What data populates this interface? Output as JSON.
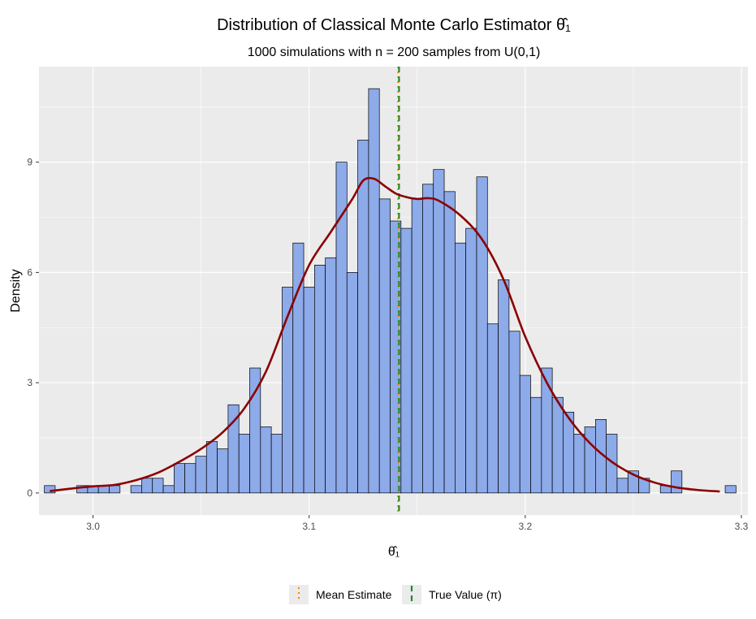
{
  "chart_data": {
    "type": "bar",
    "title": "Distribution of Classical Monte Carlo Estimator θ̂₁",
    "subtitle": "1000 simulations with n = 200 samples from U(0,1)",
    "xlabel": "θ̂₁",
    "ylabel": "Density",
    "xlim": [
      2.975,
      3.303
    ],
    "ylim": [
      -0.6,
      11.6
    ],
    "x_ticks": [
      3.0,
      3.1,
      3.2,
      3.3
    ],
    "x_tick_labels": [
      "3.0",
      "3.1",
      "3.2",
      "3.3"
    ],
    "y_ticks": [
      0,
      3,
      6,
      9
    ],
    "y_tick_labels": [
      "0",
      "3",
      "6",
      "9"
    ],
    "grid": true,
    "bin_width": 0.005,
    "bins": [
      {
        "x": 2.98,
        "density": 0.2
      },
      {
        "x": 2.985,
        "density": 0.0
      },
      {
        "x": 2.99,
        "density": 0.0
      },
      {
        "x": 2.995,
        "density": 0.2
      },
      {
        "x": 3.0,
        "density": 0.2
      },
      {
        "x": 3.005,
        "density": 0.2
      },
      {
        "x": 3.01,
        "density": 0.2
      },
      {
        "x": 3.015,
        "density": 0.0
      },
      {
        "x": 3.02,
        "density": 0.2
      },
      {
        "x": 3.025,
        "density": 0.4
      },
      {
        "x": 3.03,
        "density": 0.4
      },
      {
        "x": 3.035,
        "density": 0.2
      },
      {
        "x": 3.04,
        "density": 0.8
      },
      {
        "x": 3.045,
        "density": 0.8
      },
      {
        "x": 3.05,
        "density": 1.0
      },
      {
        "x": 3.055,
        "density": 1.4
      },
      {
        "x": 3.06,
        "density": 1.2
      },
      {
        "x": 3.065,
        "density": 2.4
      },
      {
        "x": 3.07,
        "density": 1.6
      },
      {
        "x": 3.075,
        "density": 3.4
      },
      {
        "x": 3.08,
        "density": 1.8
      },
      {
        "x": 3.085,
        "density": 1.6
      },
      {
        "x": 3.09,
        "density": 5.6
      },
      {
        "x": 3.095,
        "density": 6.8
      },
      {
        "x": 3.1,
        "density": 5.6
      },
      {
        "x": 3.105,
        "density": 6.2
      },
      {
        "x": 3.11,
        "density": 6.4
      },
      {
        "x": 3.115,
        "density": 9.0
      },
      {
        "x": 3.12,
        "density": 6.0
      },
      {
        "x": 3.125,
        "density": 9.6
      },
      {
        "x": 3.13,
        "density": 11.0
      },
      {
        "x": 3.135,
        "density": 8.0
      },
      {
        "x": 3.14,
        "density": 7.4
      },
      {
        "x": 3.145,
        "density": 7.2
      },
      {
        "x": 3.15,
        "density": 8.0
      },
      {
        "x": 3.155,
        "density": 8.4
      },
      {
        "x": 3.16,
        "density": 8.8
      },
      {
        "x": 3.165,
        "density": 8.2
      },
      {
        "x": 3.17,
        "density": 6.8
      },
      {
        "x": 3.175,
        "density": 7.2
      },
      {
        "x": 3.18,
        "density": 8.6
      },
      {
        "x": 3.185,
        "density": 4.6
      },
      {
        "x": 3.19,
        "density": 5.8
      },
      {
        "x": 3.195,
        "density": 4.4
      },
      {
        "x": 3.2,
        "density": 3.2
      },
      {
        "x": 3.205,
        "density": 2.6
      },
      {
        "x": 3.21,
        "density": 3.4
      },
      {
        "x": 3.215,
        "density": 2.6
      },
      {
        "x": 3.22,
        "density": 2.2
      },
      {
        "x": 3.225,
        "density": 1.6
      },
      {
        "x": 3.23,
        "density": 1.8
      },
      {
        "x": 3.235,
        "density": 2.0
      },
      {
        "x": 3.24,
        "density": 1.6
      },
      {
        "x": 3.245,
        "density": 0.4
      },
      {
        "x": 3.25,
        "density": 0.6
      },
      {
        "x": 3.255,
        "density": 0.4
      },
      {
        "x": 3.26,
        "density": 0.0
      },
      {
        "x": 3.265,
        "density": 0.2
      },
      {
        "x": 3.27,
        "density": 0.6
      },
      {
        "x": 3.275,
        "density": 0.0
      },
      {
        "x": 3.28,
        "density": 0.0
      },
      {
        "x": 3.285,
        "density": 0.0
      },
      {
        "x": 3.29,
        "density": 0.0
      },
      {
        "x": 3.295,
        "density": 0.2
      }
    ],
    "density_curve": {
      "x": [
        2.98,
        2.99,
        3.0,
        3.01,
        3.02,
        3.03,
        3.04,
        3.05,
        3.06,
        3.07,
        3.08,
        3.09,
        3.1,
        3.11,
        3.12,
        3.125,
        3.13,
        3.135,
        3.14,
        3.145,
        3.15,
        3.155,
        3.16,
        3.17,
        3.18,
        3.19,
        3.2,
        3.21,
        3.22,
        3.23,
        3.24,
        3.25,
        3.26,
        3.27,
        3.28,
        3.29
      ],
      "y": [
        0.05,
        0.12,
        0.18,
        0.22,
        0.35,
        0.55,
        0.85,
        1.2,
        1.65,
        2.3,
        3.3,
        4.8,
        6.2,
        7.1,
        8.0,
        8.5,
        8.55,
        8.35,
        8.15,
        8.05,
        8.0,
        8.02,
        7.95,
        7.55,
        6.9,
        5.8,
        4.25,
        3.0,
        2.05,
        1.35,
        0.85,
        0.5,
        0.28,
        0.15,
        0.08,
        0.04
      ]
    },
    "reference_lines": [
      {
        "name": "Mean Estimate",
        "x": 3.1412,
        "color": "#FF7F00",
        "style": "dotted"
      },
      {
        "name": "True Value (π)",
        "x": 3.14159,
        "color": "#228B22",
        "style": "dashed"
      }
    ],
    "colors": {
      "bar_fill": "#8DAAE9",
      "bar_stroke": "#000000",
      "curve": "#8B0000",
      "panel_bg": "#EBEBEB",
      "grid": "#FFFFFF"
    },
    "legend": {
      "position": "bottom",
      "entries": [
        "Mean Estimate",
        "True Value (π)"
      ]
    }
  }
}
